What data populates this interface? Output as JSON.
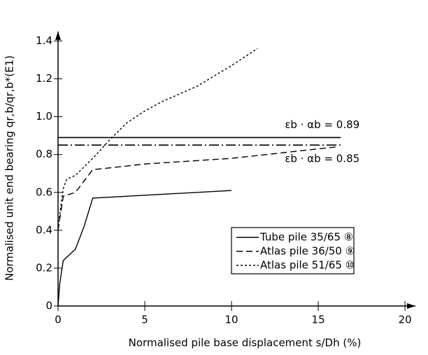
{
  "chart_data": {
    "type": "line",
    "xlabel": "Normalised pile base displacement s/Dh (%)",
    "ylabel": "Normalised unit end bearing qr,b/qr,b*(E1)",
    "xlim": [
      0,
      20.6
    ],
    "ylim": [
      0,
      1.45
    ],
    "xticks": [
      0,
      5,
      10,
      15,
      20
    ],
    "yticks": [
      0,
      {
        "value": 0.2,
        "label": "0.2"
      },
      {
        "value": 0.4,
        "label": "0.4"
      },
      {
        "value": 0.6,
        "label": "0.6"
      },
      {
        "value": 0.8,
        "label": "0.8"
      },
      {
        "value": 1.0,
        "label": "1.0"
      },
      {
        "value": 1.2,
        "label": "1.2"
      },
      {
        "value": 1.4,
        "label": "1.4"
      }
    ],
    "legend": "lower right",
    "series": [
      {
        "name": "Tube pile 35/65 ⑧",
        "color": "#000000",
        "dash": "none",
        "x": [
          0,
          0.1,
          0.3,
          1,
          1.5,
          2,
          10
        ],
        "values": [
          0,
          0.12,
          0.24,
          0.3,
          0.42,
          0.57,
          0.61
        ]
      },
      {
        "name": "Atlas pile 36/50 ⑨",
        "color": "#000000",
        "dash": "9 5",
        "x": [
          0,
          0.3,
          1,
          1.5,
          2,
          3,
          5,
          10,
          15,
          16
        ],
        "values": [
          0.4,
          0.58,
          0.6,
          0.66,
          0.72,
          0.73,
          0.75,
          0.78,
          0.83,
          0.84
        ]
      },
      {
        "name": "Atlas pile 51/65 ⑩",
        "color": "#000000",
        "dash": "3 3",
        "x": [
          0,
          0.3,
          0.5,
          1,
          2,
          3,
          4,
          5,
          6,
          8,
          10,
          11.5
        ],
        "values": [
          0.42,
          0.62,
          0.67,
          0.69,
          0.78,
          0.88,
          0.97,
          1.03,
          1.08,
          1.16,
          1.27,
          1.36
        ]
      }
    ],
    "reference_lines": [
      {
        "label": "εb · αb = 0.89",
        "value": 0.89,
        "dash": "none",
        "x": [
          0,
          16.3
        ]
      },
      {
        "label": "εb · αb = 0.85",
        "value": 0.85,
        "dash": "14 4 2 4",
        "x": [
          0,
          16.3
        ]
      }
    ]
  }
}
